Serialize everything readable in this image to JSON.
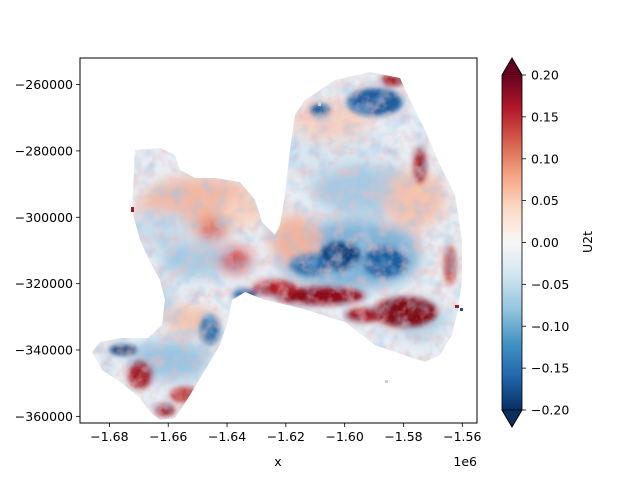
{
  "chart_data": {
    "type": "heatmap",
    "title": "",
    "xlabel": "x",
    "ylabel": "",
    "x_offset_label": "1e6",
    "xlim": [
      -1.69,
      -1.555
    ],
    "ylim": [
      -362000,
      -252000
    ],
    "x_ticks": [
      -1.68,
      -1.66,
      -1.64,
      -1.62,
      -1.6,
      -1.58,
      -1.56
    ],
    "x_tick_labels": [
      "−1.68",
      "−1.66",
      "−1.64",
      "−1.62",
      "−1.60",
      "−1.58",
      "−1.56"
    ],
    "y_ticks": [
      -260000,
      -280000,
      -300000,
      -320000,
      -340000,
      -360000
    ],
    "y_tick_labels": [
      "−260000",
      "−280000",
      "−300000",
      "−320000",
      "−340000",
      "−360000"
    ],
    "colorbar": {
      "label": "U2t",
      "vmin": -0.2,
      "vmax": 0.2,
      "extend": "both",
      "colormap": "RdBu_r",
      "ticks": [
        0.2,
        0.15,
        0.1,
        0.05,
        0.0,
        -0.05,
        -0.1,
        -0.15,
        -0.2
      ],
      "tick_labels": [
        "0.20",
        "0.15",
        "0.10",
        "0.05",
        "0.00",
        "−0.05",
        "−0.10",
        "−0.15",
        "−0.20"
      ]
    },
    "grid": false,
    "features": [
      {
        "x": -1.605,
        "y": -310000,
        "value": -0.2
      },
      {
        "x": -1.585,
        "y": -265000,
        "value": -0.15
      },
      {
        "x": -1.615,
        "y": -320000,
        "value": -0.12
      },
      {
        "x": -1.605,
        "y": -328000,
        "value": 0.2
      },
      {
        "x": -1.585,
        "y": -330000,
        "value": 0.2
      },
      {
        "x": -1.63,
        "y": -327000,
        "value": 0.18
      },
      {
        "x": -1.668,
        "y": -350000,
        "value": 0.2
      },
      {
        "x": -1.585,
        "y": -258000,
        "value": 0.2
      },
      {
        "x": -1.645,
        "y": -303000,
        "value": 0.15
      },
      {
        "x": -1.64,
        "y": -312000,
        "value": 0.15
      },
      {
        "x": -1.675,
        "y": -302000,
        "value": 0.08
      },
      {
        "x": -1.57,
        "y": -292000,
        "value": 0.06
      },
      {
        "x": -1.665,
        "y": -318000,
        "value": -0.12
      },
      {
        "x": -1.66,
        "y": -340000,
        "value": -0.1
      },
      {
        "x": -1.62,
        "y": -300000,
        "value": -0.08
      },
      {
        "x": -1.58,
        "y": -310000,
        "value": -0.14
      },
      {
        "x": -1.6,
        "y": -290000,
        "value": -0.05
      }
    ]
  }
}
